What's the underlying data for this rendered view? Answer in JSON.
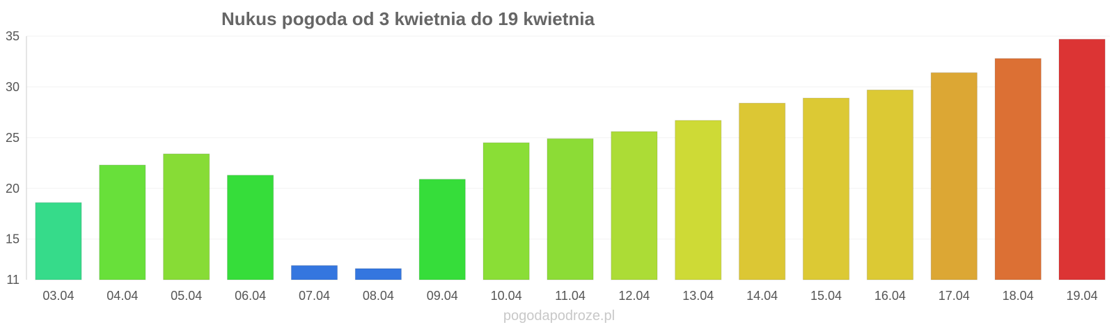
{
  "chart_data": {
    "type": "bar",
    "title": "Nukus pogoda od 3 kwietnia do 19 kwietnia",
    "xlabel": "",
    "ylabel": "",
    "ylim": [
      11,
      35
    ],
    "yticks": [
      11,
      15,
      20,
      25,
      30,
      35
    ],
    "grid": true,
    "categories": [
      "03.04",
      "04.04",
      "05.04",
      "06.04",
      "07.04",
      "08.04",
      "09.04",
      "10.04",
      "11.04",
      "12.04",
      "13.04",
      "14.04",
      "15.04",
      "16.04",
      "17.04",
      "18.04",
      "19.04"
    ],
    "values": [
      18.6,
      22.3,
      23.4,
      21.3,
      12.4,
      12.1,
      20.9,
      24.5,
      24.9,
      25.6,
      26.7,
      28.4,
      28.9,
      29.7,
      31.4,
      32.8,
      34.7
    ],
    "colors": [
      "#36db8a",
      "#68e03a",
      "#87dc36",
      "#36dd3a",
      "#3476df",
      "#3476df",
      "#36dd3a",
      "#8ade36",
      "#8cdc36",
      "#acdc36",
      "#ceda36",
      "#dcc734",
      "#dcc934",
      "#dcc934",
      "#dca734",
      "#dc7034",
      "#dc3434"
    ]
  },
  "watermark": "pogodapodroze.pl"
}
